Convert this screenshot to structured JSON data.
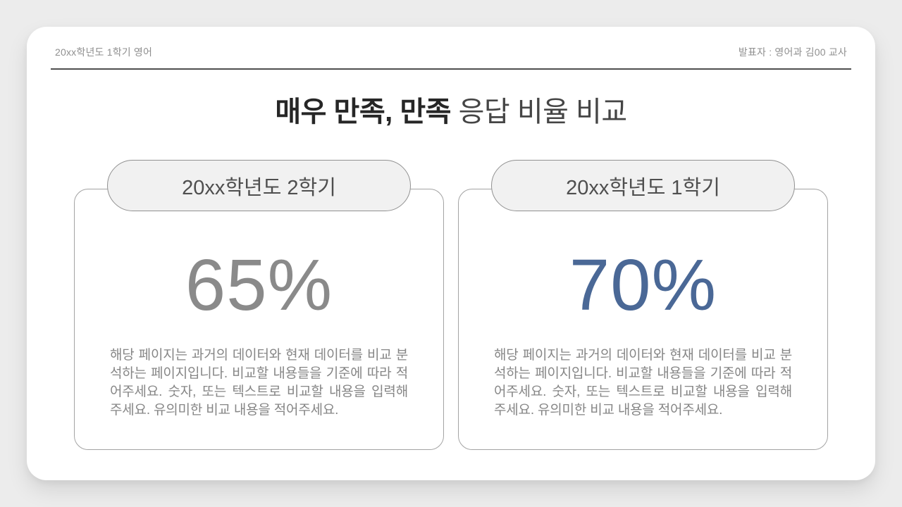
{
  "header": {
    "left": "20xx학년도 1학기 영어",
    "right": "발표자 : 영어과 김00 교사"
  },
  "title": {
    "emphasis": "매우 만족, 만족",
    "rest": "응답 비율 비교"
  },
  "cards": [
    {
      "label": "20xx학년도 2학기",
      "value": "65%",
      "value_color": "#8a8a8a",
      "description": "해당 페이지는 과거의 데이터와 현재 데이터를 비교 분석하는 페이지입니다. 비교할 내용들을 기준에 따라 적어주세요. 숫자, 또는 텍스트로 비교할 내용을 입력해 주세요. 유의미한 비교 내용을 적어주세요."
    },
    {
      "label": "20xx학년도 1학기",
      "value": "70%",
      "value_color": "#4a6896",
      "description": "해당 페이지는 과거의 데이터와 현재 데이터를 비교 분석하는 페이지입니다. 비교할 내용들을 기준에 따라 적어주세요. 숫자, 또는 텍스트로 비교할 내용을 입력해 주세요. 유의미한 비교 내용을 적어주세요."
    }
  ],
  "colors": {
    "page_background": "#ececec",
    "slide_background": "#ffffff",
    "divider": "#4f4f4f",
    "title_emphasis": "#262626",
    "title_rest": "#454545",
    "header_text": "#8f8f8f",
    "pill_background": "#f1f1f1",
    "pill_border": "#919191",
    "card_border": "#a3a3a3",
    "body_text": "#868686",
    "value_gray": "#8a8a8a",
    "value_blue": "#4a6896"
  }
}
